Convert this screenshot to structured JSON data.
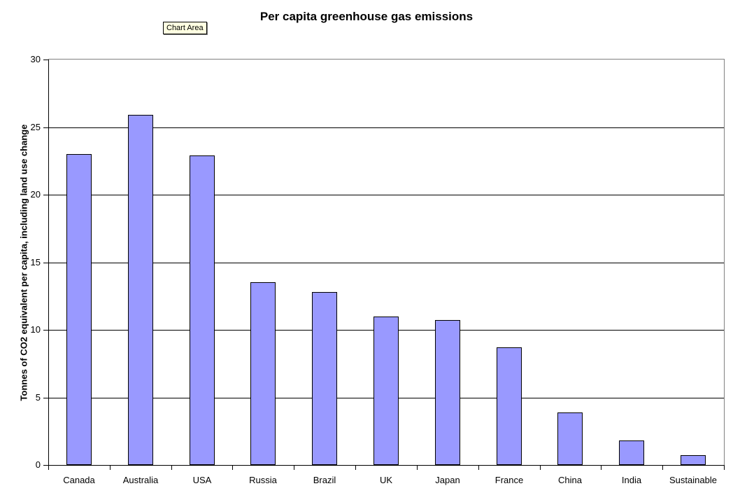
{
  "title": "Per capita greenhouse gas emissions",
  "tooltip": {
    "label": "Chart Area"
  },
  "chart_data": {
    "type": "bar",
    "title": "Per capita greenhouse gas emissions",
    "xlabel": "",
    "ylabel": "Tonnes of CO2 equivalent per capita, including land use change",
    "categories": [
      "Canada",
      "Australia",
      "USA",
      "Russia",
      "Brazil",
      "UK",
      "Japan",
      "France",
      "China",
      "India",
      "Sustainable"
    ],
    "values": [
      23.0,
      25.9,
      22.9,
      13.5,
      12.8,
      11.0,
      10.7,
      8.7,
      3.9,
      1.8,
      0.7
    ],
    "ylim": [
      0,
      30
    ],
    "ytick_step": 5,
    "grid": true,
    "legend": false,
    "colors": {
      "bar_fill": "#9999FF",
      "bar_border": "#000000",
      "gridline": "#000000",
      "axis": "#000000",
      "plot_border": "#808080",
      "tooltip_bg": "#FFFFE1",
      "background": "#FFFFFF",
      "text": "#000000"
    }
  }
}
